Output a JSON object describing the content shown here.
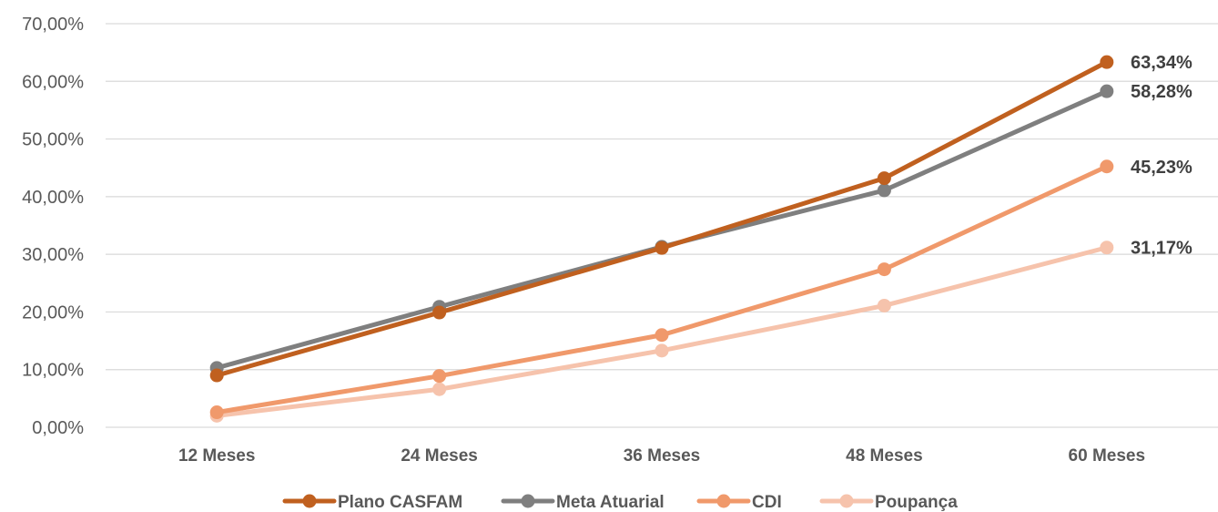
{
  "chart_data": {
    "type": "line",
    "title": "",
    "xlabel": "",
    "ylabel": "",
    "categories": [
      "12 Meses",
      "24 Meses",
      "36 Meses",
      "48 Meses",
      "60 Meses"
    ],
    "ylim": [
      0,
      70
    ],
    "y_ticks": [
      "0,00%",
      "10,00%",
      "20,00%",
      "30,00%",
      "40,00%",
      "50,00%",
      "60,00%",
      "70,00%"
    ],
    "grid": true,
    "legend_position": "bottom",
    "series": [
      {
        "name": "Plano CASFAM",
        "color": "#C0601F",
        "values": [
          9.0,
          19.9,
          31.1,
          43.2,
          63.34
        ],
        "end_label": "63,34%"
      },
      {
        "name": "Meta Atuarial",
        "color": "#7F7F7F",
        "values": [
          10.3,
          20.9,
          31.3,
          41.1,
          58.28
        ],
        "end_label": "58,28%"
      },
      {
        "name": "CDI",
        "color": "#F0996B",
        "values": [
          2.6,
          8.9,
          16.0,
          27.4,
          45.23
        ],
        "end_label": "45,23%"
      },
      {
        "name": "Poupança",
        "color": "#F6C3AC",
        "values": [
          2.0,
          6.6,
          13.3,
          21.1,
          31.17
        ],
        "end_label": "31,17%"
      }
    ]
  }
}
